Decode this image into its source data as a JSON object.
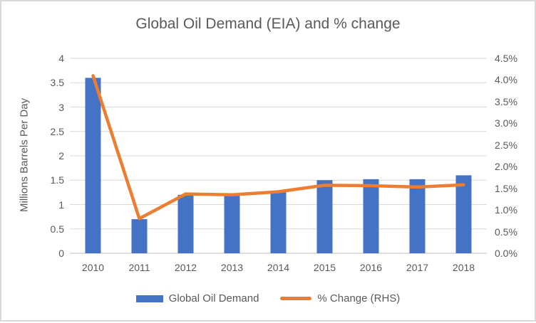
{
  "chart_data": {
    "type": "bar",
    "combo": "bar+line",
    "title": "Global Oil Demand (EIA) and % change",
    "categories": [
      "2010",
      "2011",
      "2012",
      "2013",
      "2014",
      "2015",
      "2016",
      "2017",
      "2018"
    ],
    "series": [
      {
        "name": "Global Oil Demand",
        "type": "bar",
        "axis": "left",
        "color": "#4472C4",
        "values": [
          3.6,
          0.7,
          1.2,
          1.18,
          1.28,
          1.5,
          1.52,
          1.52,
          1.6
        ]
      },
      {
        "name": "% Change (RHS)",
        "type": "line",
        "axis": "right",
        "color": "#ED7D31",
        "values": [
          4.1,
          0.8,
          1.37,
          1.35,
          1.42,
          1.57,
          1.56,
          1.53,
          1.58
        ]
      }
    ],
    "left_axis": {
      "label": "Millions Barrels Per Day",
      "min": 0,
      "max": 4,
      "step": 0.5,
      "ticks": [
        "0",
        "0.5",
        "1",
        "1.5",
        "2",
        "2.5",
        "3",
        "3.5",
        "4"
      ]
    },
    "right_axis": {
      "min": 0,
      "max": 4.5,
      "step": 0.5,
      "ticks": [
        "0.0%",
        "0.5%",
        "1.0%",
        "1.5%",
        "2.0%",
        "2.5%",
        "3.0%",
        "3.5%",
        "4.0%",
        "4.5%"
      ]
    },
    "grid": true,
    "legend_position": "bottom",
    "colors": {
      "text": "#595959",
      "gridline": "#d9d9d9",
      "axis_line": "#d3d3d3",
      "border": "#d9d9d9"
    }
  }
}
